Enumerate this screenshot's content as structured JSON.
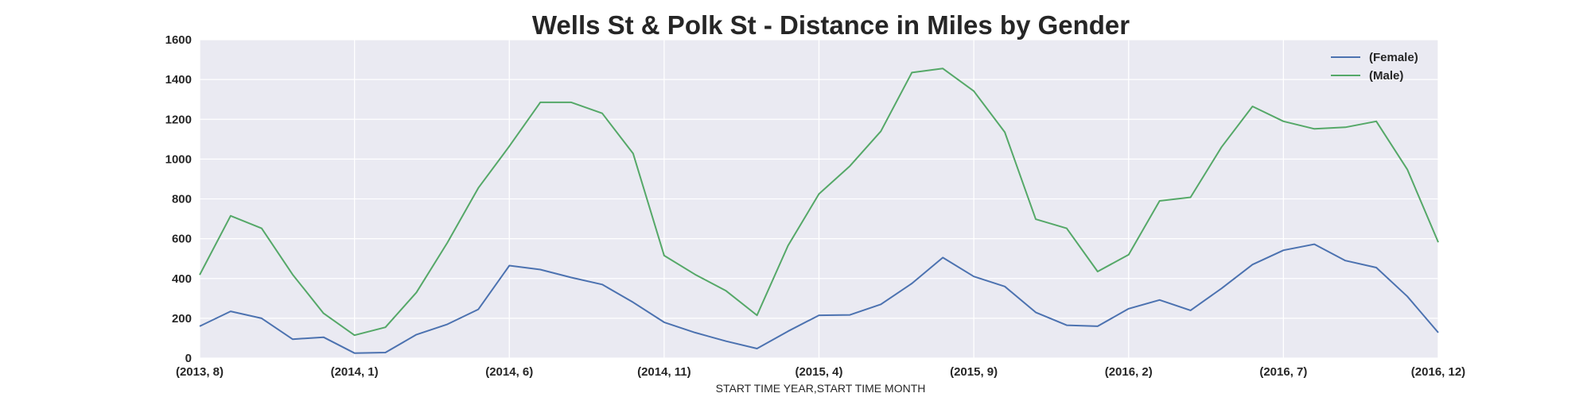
{
  "chart_data": {
    "type": "line",
    "title": "Wells St & Polk St - Distance in Miles by Gender",
    "xlabel": "START TIME YEAR,START TIME MONTH",
    "ylabel": "",
    "categories": [
      "(2013, 8)",
      "(2013, 9)",
      "(2013, 10)",
      "(2013, 11)",
      "(2013, 12)",
      "(2014, 1)",
      "(2014, 2)",
      "(2014, 3)",
      "(2014, 4)",
      "(2014, 5)",
      "(2014, 6)",
      "(2014, 7)",
      "(2014, 8)",
      "(2014, 9)",
      "(2014, 10)",
      "(2014, 11)",
      "(2014, 12)",
      "(2015, 1)",
      "(2015, 2)",
      "(2015, 3)",
      "(2015, 4)",
      "(2015, 5)",
      "(2015, 6)",
      "(2015, 7)",
      "(2015, 8)",
      "(2015, 9)",
      "(2015, 10)",
      "(2015, 11)",
      "(2015, 12)",
      "(2016, 1)",
      "(2016, 2)",
      "(2016, 3)",
      "(2016, 4)",
      "(2016, 5)",
      "(2016, 6)",
      "(2016, 7)",
      "(2016, 8)",
      "(2016, 9)",
      "(2016, 10)",
      "(2016, 11)",
      "(2016, 12)"
    ],
    "x_tick_labels": [
      "(2013, 8)",
      "(2014, 1)",
      "(2014, 6)",
      "(2014, 11)",
      "(2015, 4)",
      "(2015, 9)",
      "(2016, 2)",
      "(2016, 7)",
      "(2016, 12)"
    ],
    "x_tick_every": 5,
    "y_ticks": [
      0,
      200,
      400,
      600,
      800,
      1000,
      1200,
      1400,
      1600
    ],
    "ylim": [
      0,
      1600
    ],
    "grid": true,
    "legend_position": "top-right",
    "series": [
      {
        "name": "(Female)",
        "color": "#4c72b0",
        "values": [
          160,
          235,
          200,
          95,
          105,
          25,
          28,
          118,
          170,
          245,
          465,
          445,
          405,
          370,
          280,
          180,
          128,
          85,
          48,
          135,
          215,
          217,
          270,
          375,
          505,
          410,
          360,
          230,
          165,
          160,
          248,
          292,
          240,
          350,
          470,
          542,
          572,
          490,
          455,
          310,
          128
        ]
      },
      {
        "name": "(Male)",
        "color": "#55a868",
        "values": [
          418,
          715,
          652,
          420,
          225,
          115,
          155,
          330,
          580,
          855,
          1065,
          1285,
          1285,
          1230,
          1028,
          515,
          420,
          338,
          215,
          565,
          825,
          965,
          1140,
          1435,
          1455,
          1342,
          1135,
          698,
          652,
          435,
          520,
          790,
          808,
          1060,
          1265,
          1190,
          1152,
          1160,
          1190,
          948,
          582
        ]
      }
    ]
  }
}
